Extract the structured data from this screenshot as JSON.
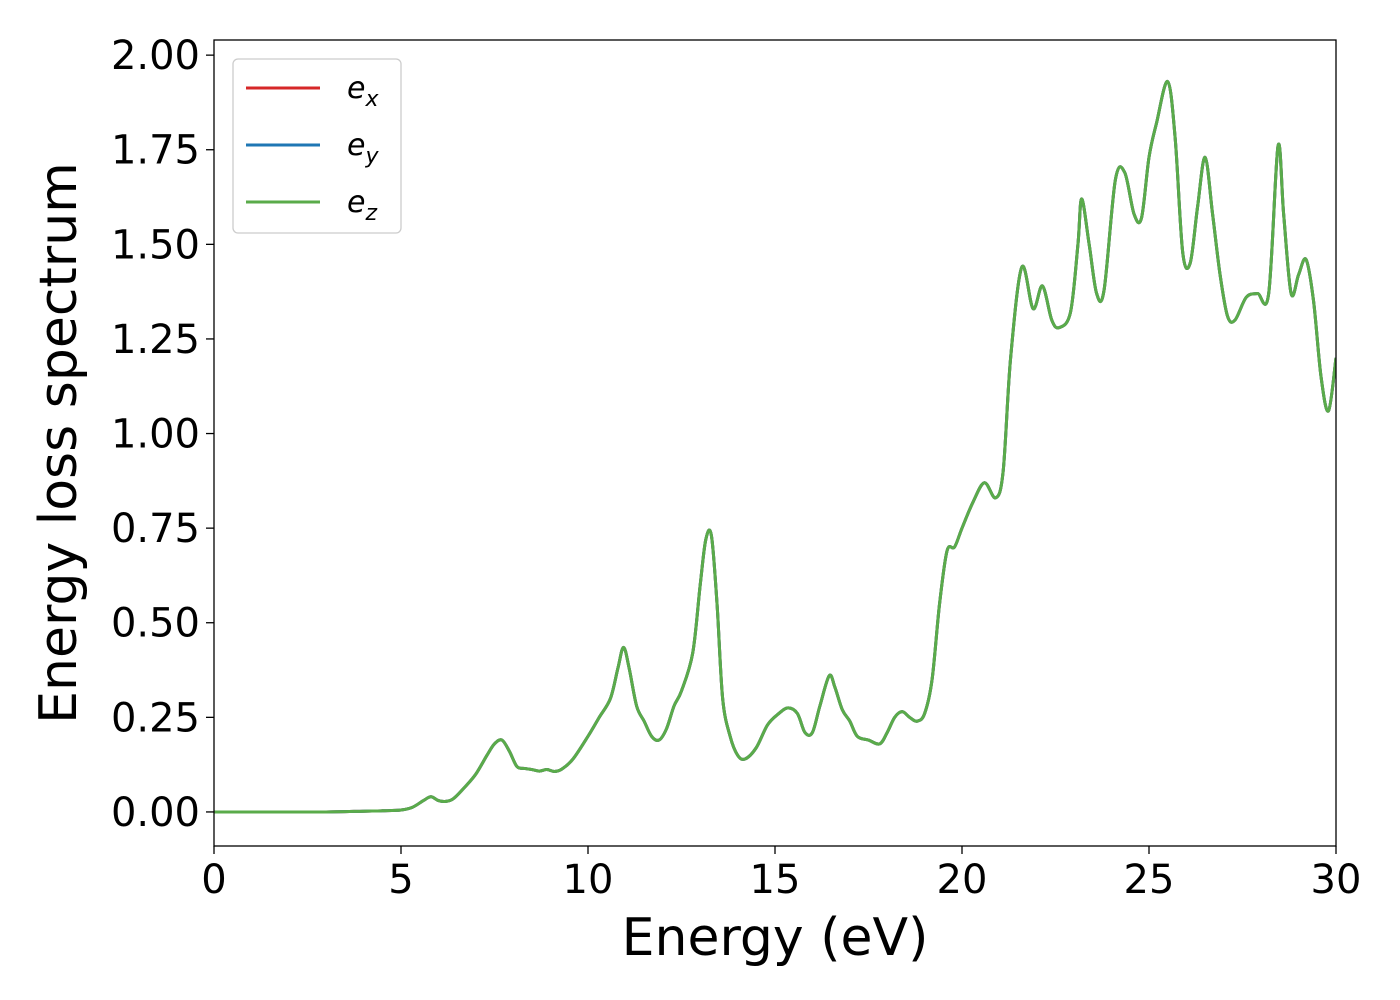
{
  "chart_data": {
    "type": "line",
    "title": "",
    "xlabel": "Energy (eV)",
    "ylabel": "Energy loss spectrum",
    "xlim": [
      0,
      30
    ],
    "ylim": [
      -0.09,
      2.04
    ],
    "xticks": [
      0,
      5,
      10,
      15,
      20,
      25,
      30
    ],
    "yticks": [
      0.0,
      0.25,
      0.5,
      0.75,
      1.0,
      1.25,
      1.5,
      1.75,
      2.0
    ],
    "grid": false,
    "legend_position": "top-left",
    "series": [
      {
        "name": "e_x",
        "label_base": "e",
        "label_sub": "x",
        "color": "#d62728",
        "x": [
          0,
          1,
          2,
          3,
          4,
          4.5,
          5,
          5.3,
          5.6,
          5.8,
          6.0,
          6.2,
          6.4,
          6.7,
          7.0,
          7.3,
          7.5,
          7.7,
          7.9,
          8.1,
          8.3,
          8.5,
          8.7,
          8.9,
          9.1,
          9.3,
          9.6,
          10.0,
          10.3,
          10.6,
          10.8,
          10.95,
          11.1,
          11.3,
          11.5,
          11.7,
          11.9,
          12.1,
          12.3,
          12.5,
          12.8,
          13.0,
          13.15,
          13.3,
          13.45,
          13.6,
          13.8,
          14.0,
          14.2,
          14.5,
          14.8,
          15.1,
          15.35,
          15.6,
          15.8,
          16.0,
          16.2,
          16.45,
          16.6,
          16.8,
          17.0,
          17.2,
          17.5,
          17.8,
          18.0,
          18.2,
          18.4,
          18.6,
          18.8,
          19.0,
          19.2,
          19.4,
          19.6,
          19.8,
          20.0,
          20.3,
          20.6,
          20.9,
          21.1,
          21.3,
          21.6,
          21.9,
          22.15,
          22.4,
          22.6,
          22.9,
          23.1,
          23.2,
          23.4,
          23.6,
          23.8,
          24.1,
          24.35,
          24.6,
          24.8,
          25.0,
          25.2,
          25.5,
          25.7,
          25.9,
          26.1,
          26.3,
          26.5,
          26.7,
          26.9,
          27.1,
          27.3,
          27.6,
          27.9,
          28.2,
          28.45,
          28.6,
          28.8,
          29.0,
          29.2,
          29.4,
          29.6,
          29.8,
          30.0
        ],
        "values": [
          0,
          0,
          0,
          0,
          0.002,
          0.003,
          0.005,
          0.012,
          0.03,
          0.04,
          0.03,
          0.028,
          0.035,
          0.065,
          0.1,
          0.15,
          0.18,
          0.19,
          0.16,
          0.12,
          0.115,
          0.112,
          0.108,
          0.112,
          0.107,
          0.113,
          0.14,
          0.2,
          0.25,
          0.3,
          0.38,
          0.435,
          0.38,
          0.28,
          0.24,
          0.2,
          0.19,
          0.22,
          0.28,
          0.32,
          0.42,
          0.6,
          0.72,
          0.73,
          0.55,
          0.3,
          0.2,
          0.15,
          0.14,
          0.17,
          0.23,
          0.26,
          0.275,
          0.26,
          0.21,
          0.21,
          0.28,
          0.36,
          0.33,
          0.27,
          0.24,
          0.2,
          0.19,
          0.18,
          0.21,
          0.25,
          0.265,
          0.25,
          0.24,
          0.26,
          0.35,
          0.55,
          0.69,
          0.7,
          0.75,
          0.82,
          0.87,
          0.83,
          0.9,
          1.2,
          1.44,
          1.33,
          1.39,
          1.3,
          1.28,
          1.32,
          1.5,
          1.62,
          1.5,
          1.37,
          1.38,
          1.67,
          1.69,
          1.58,
          1.57,
          1.73,
          1.82,
          1.93,
          1.78,
          1.48,
          1.45,
          1.6,
          1.73,
          1.58,
          1.42,
          1.31,
          1.3,
          1.36,
          1.37,
          1.37,
          1.76,
          1.58,
          1.37,
          1.42,
          1.46,
          1.35,
          1.15,
          1.06,
          1.2
        ]
      },
      {
        "name": "e_y",
        "label_base": "e",
        "label_sub": "y",
        "color": "#1f77b4",
        "same_as": "e_x"
      },
      {
        "name": "e_z",
        "label_base": "e",
        "label_sub": "z",
        "color": "#5aab4a",
        "same_as": "e_x"
      }
    ]
  }
}
